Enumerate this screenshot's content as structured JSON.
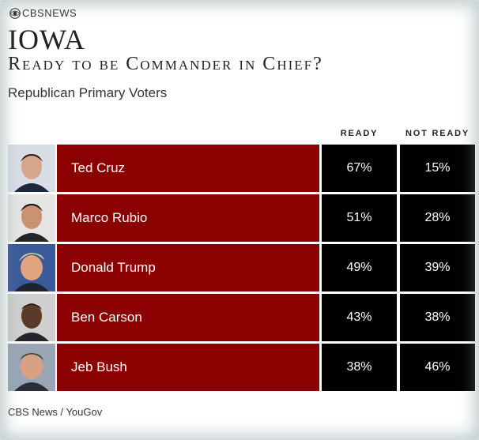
{
  "brand": "CBSNEWS",
  "icon": "cbs-eye-icon",
  "title": "IOWA",
  "subtitle": "Ready to be Commander in Chief?",
  "population": "Republican Primary Voters",
  "colors": {
    "name_cell": "#8b0000",
    "value_cell": "#000000",
    "text": "#ffffff"
  },
  "chart_data": {
    "type": "table",
    "columns": [
      "READY",
      "NOT READY"
    ],
    "rows": [
      {
        "name": "Ted Cruz",
        "ready": "67%",
        "not_ready": "15%"
      },
      {
        "name": "Marco Rubio",
        "ready": "51%",
        "not_ready": "28%"
      },
      {
        "name": "Donald Trump",
        "ready": "49%",
        "not_ready": "39%"
      },
      {
        "name": "Ben Carson",
        "ready": "43%",
        "not_ready": "38%"
      },
      {
        "name": "Jeb Bush",
        "ready": "38%",
        "not_ready": "46%"
      }
    ]
  },
  "source": "CBS News / YouGov"
}
